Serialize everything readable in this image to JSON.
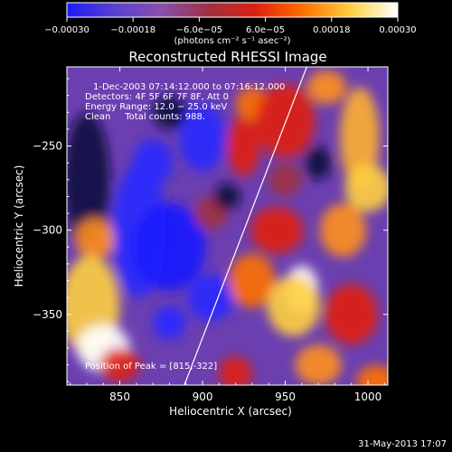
{
  "chart_data": {
    "type": "heatmap",
    "title": "Reconstructed RHESSI Image",
    "xlabel": "Heliocentric X (arcsec)",
    "ylabel": "Heliocentric Y (arcsec)",
    "xlim": [
      818,
      1012
    ],
    "ylim": [
      -392,
      -203
    ],
    "x_ticks": [
      850,
      900,
      950,
      1000
    ],
    "x_tick_labels": [
      "850",
      "900",
      "950",
      "1000"
    ],
    "y_ticks": [
      -250,
      -300,
      -350
    ],
    "y_tick_labels": [
      "−250",
      "−300",
      "−350"
    ],
    "colorbar": {
      "label": "(photons cm⁻² s⁻¹ asec⁻²)",
      "range": [
        -0.0003,
        0.0003
      ],
      "ticks": [
        -0.0003,
        -0.00018,
        -6e-05,
        6e-05,
        0.00018,
        0.0003
      ],
      "tick_labels": [
        "−0.00030",
        "−0.00018",
        "−6.0e−05",
        "6.0e−05",
        "0.00018",
        "0.00030"
      ],
      "colors": [
        "#1a1aff",
        "#5a3fd0",
        "#8a4fb0",
        "#a03040",
        "#e02010",
        "#ff7000",
        "#ffd040",
        "#ffffff"
      ]
    },
    "annotations": [
      "1-Dec-2003 07:14:12.000 to 07:16:12.000",
      "Detectors: 4F 5F 6F 7F 8F, Att 0",
      "Energy Range: 12.0 − 25.0 keV",
      "Clean     Total counts: 988."
    ],
    "peak_label": "Position of Peak = [815,-322]",
    "limb_line": [
      [
        889,
        -392
      ],
      [
        963,
        -203
      ]
    ]
  },
  "footer": {
    "date": "31-May-2013 17:07"
  }
}
